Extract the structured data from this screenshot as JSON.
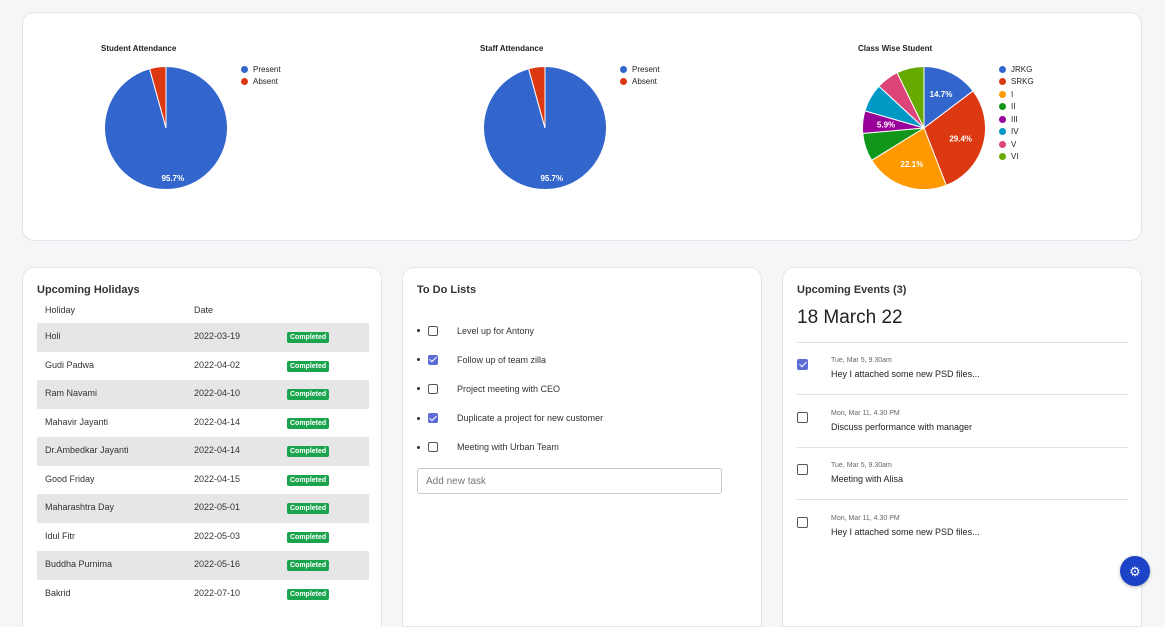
{
  "charts": [
    {
      "id": "student",
      "title": "Student Attendance",
      "legend": [
        "Present",
        "Absent"
      ],
      "colors": [
        "#3366cc",
        "#dc3912"
      ],
      "values": [
        95.7,
        4.3
      ],
      "labels": [
        "95.7%",
        ""
      ]
    },
    {
      "id": "staff",
      "title": "Staff Attendance",
      "legend": [
        "Present",
        "Absent"
      ],
      "colors": [
        "#3366cc",
        "#dc3912"
      ],
      "values": [
        95.7,
        4.3
      ],
      "labels": [
        "95.7%",
        ""
      ]
    },
    {
      "id": "classwise",
      "title": "Class Wise Student",
      "legend": [
        "JRKG",
        "SRKG",
        "I",
        "II",
        "III",
        "IV",
        "V",
        "VI"
      ],
      "colors": [
        "#3366cc",
        "#dc3912",
        "#ff9900",
        "#109618",
        "#990099",
        "#0099c6",
        "#dd4477",
        "#66aa00"
      ],
      "values": [
        14.7,
        29.4,
        22.1,
        7.4,
        5.9,
        7.4,
        5.9,
        7.2
      ],
      "labels": [
        "14.7%",
        "29.4%",
        "22.1%",
        "",
        "5.9%",
        "",
        "",
        ""
      ]
    }
  ],
  "holidays": {
    "title": "Upcoming Holidays",
    "col_holiday": "Holiday",
    "col_date": "Date",
    "rows": [
      {
        "name": "Holi",
        "date": "2022-03-19",
        "status": "Completed"
      },
      {
        "name": "Gudi Padwa",
        "date": "2022-04-02",
        "status": "Completed"
      },
      {
        "name": "Ram Navami",
        "date": "2022-04-10",
        "status": "Completed"
      },
      {
        "name": "Mahavir Jayanti",
        "date": "2022-04-14",
        "status": "Completed"
      },
      {
        "name": "Dr.Ambedkar Jayanti",
        "date": "2022-04-14",
        "status": "Completed"
      },
      {
        "name": "Good Friday",
        "date": "2022-04-15",
        "status": "Completed"
      },
      {
        "name": "Maharashtra Day",
        "date": "2022-05-01",
        "status": "Completed"
      },
      {
        "name": "Idul Fitr",
        "date": "2022-05-03",
        "status": "Completed"
      },
      {
        "name": "Buddha Purnima",
        "date": "2022-05-16",
        "status": "Completed"
      },
      {
        "name": "Bakrid",
        "date": "2022-07-10",
        "status": "Completed"
      }
    ]
  },
  "todo": {
    "title": "To Do Lists",
    "items": [
      {
        "label": "Level up for Antony",
        "checked": false
      },
      {
        "label": "Follow up of team zilla",
        "checked": true
      },
      {
        "label": "Project meeting with CEO",
        "checked": false
      },
      {
        "label": "Duplicate a project for new customer",
        "checked": true
      },
      {
        "label": "Meeting with Urban Team",
        "checked": false
      }
    ],
    "input_placeholder": "Add new task"
  },
  "events": {
    "title": "Upcoming Events (3)",
    "date_heading": "18 March 22",
    "items": [
      {
        "time": "Tue, Mar 5, 9.30am",
        "desc": "Hey I attached some new PSD files...",
        "checked": true
      },
      {
        "time": "Mon, Mar 11, 4.30 PM",
        "desc": "Discuss performance with manager",
        "checked": false
      },
      {
        "time": "Tue, Mar 5, 9.30am",
        "desc": "Meeting with Alisa",
        "checked": false
      },
      {
        "time": "Mon, Mar 11, 4.30 PM",
        "desc": "Hey I attached some new PSD files...",
        "checked": false
      }
    ]
  },
  "fab_icon": "gear-icon",
  "chart_data": [
    {
      "type": "pie",
      "title": "Student Attendance",
      "categories": [
        "Present",
        "Absent"
      ],
      "values": [
        95.7,
        4.3
      ],
      "legend": "right"
    },
    {
      "type": "pie",
      "title": "Staff Attendance",
      "categories": [
        "Present",
        "Absent"
      ],
      "values": [
        95.7,
        4.3
      ],
      "legend": "right"
    },
    {
      "type": "pie",
      "title": "Class Wise Student",
      "categories": [
        "JRKG",
        "SRKG",
        "I",
        "II",
        "III",
        "IV",
        "V",
        "VI"
      ],
      "values": [
        14.7,
        29.4,
        22.1,
        7.4,
        5.9,
        7.4,
        5.9,
        7.2
      ],
      "legend": "right"
    }
  ]
}
